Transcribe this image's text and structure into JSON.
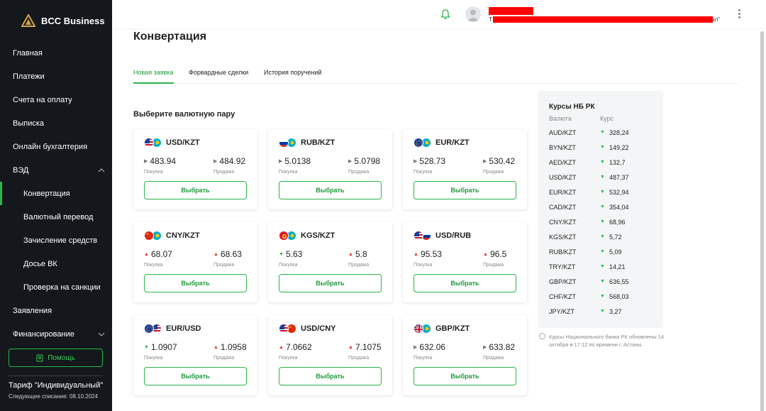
{
  "brand": {
    "name": "BCC Business"
  },
  "sidebar": {
    "items": [
      {
        "label": "Главная"
      },
      {
        "label": "Платежи"
      },
      {
        "label": "Счета на оплату"
      },
      {
        "label": "Выписка"
      },
      {
        "label": "Онлайн бухгалтерия"
      },
      {
        "label": "ВЭД"
      },
      {
        "label": "Конвертация"
      },
      {
        "label": "Валютный перевод"
      },
      {
        "label": "Зачисление средств"
      },
      {
        "label": "Досье ВК"
      },
      {
        "label": "Проверка на санкции"
      },
      {
        "label": "Заявления"
      },
      {
        "label": "Финансирование"
      }
    ],
    "help_label": "Помощь",
    "tariff_title": "Тариф \"Индивидуальный\"",
    "tariff_sub": "Следующее списание: 08.10.2024"
  },
  "header": {
    "user_line2_prefix": "Т",
    "user_line2_suffix": "ал\""
  },
  "page": {
    "title": "Конвертация",
    "tabs": [
      {
        "label": "Новая заявка"
      },
      {
        "label": "Форвардные сделки"
      },
      {
        "label": "История поручений"
      }
    ],
    "section_title": "Выберите валютную пару",
    "buy_label": "Покупка",
    "sell_label": "Продажа",
    "select_label": "Выбрать"
  },
  "pairs": [
    {
      "pair": "USD/KZT",
      "buy": "483.94",
      "sell": "484.92",
      "buy_trend": "neutral",
      "sell_trend": "neutral"
    },
    {
      "pair": "RUB/KZT",
      "buy": "5.0138",
      "sell": "5.0798",
      "buy_trend": "neutral",
      "sell_trend": "neutral"
    },
    {
      "pair": "EUR/KZT",
      "buy": "528.73",
      "sell": "530.42",
      "buy_trend": "neutral",
      "sell_trend": "neutral"
    },
    {
      "pair": "CNY/KZT",
      "buy": "68.07",
      "sell": "68.63",
      "buy_trend": "up",
      "sell_trend": "up"
    },
    {
      "pair": "KGS/KZT",
      "buy": "5.63",
      "sell": "5.8",
      "buy_trend": "down",
      "sell_trend": "up"
    },
    {
      "pair": "USD/RUB",
      "buy": "95.53",
      "sell": "96.5",
      "buy_trend": "up",
      "sell_trend": "up"
    },
    {
      "pair": "EUR/USD",
      "buy": "1.0907",
      "sell": "1.0958",
      "buy_trend": "down",
      "sell_trend": "up"
    },
    {
      "pair": "USD/CNY",
      "buy": "7.0662",
      "sell": "7.1075",
      "buy_trend": "up",
      "sell_trend": "up"
    },
    {
      "pair": "GBP/KZT",
      "buy": "632.06",
      "sell": "633.82",
      "buy_trend": "neutral",
      "sell_trend": "neutral"
    }
  ],
  "nb_rates": {
    "title": "Курсы НБ РК",
    "col_currency": "Валюта",
    "col_rate": "Курс",
    "rows": [
      {
        "cur": "AUD/KZT",
        "val": "328,24"
      },
      {
        "cur": "BYN/KZT",
        "val": "149,22"
      },
      {
        "cur": "AED/KZT",
        "val": "132,7"
      },
      {
        "cur": "USD/KZT",
        "val": "487,37"
      },
      {
        "cur": "EUR/KZT",
        "val": "532,94"
      },
      {
        "cur": "CAD/KZT",
        "val": "354,04"
      },
      {
        "cur": "CNY/KZT",
        "val": "68,96"
      },
      {
        "cur": "KGS/KZT",
        "val": "5,72"
      },
      {
        "cur": "RUB/KZT",
        "val": "5,09"
      },
      {
        "cur": "TRY/KZT",
        "val": "14,21"
      },
      {
        "cur": "GBP/KZT",
        "val": "636,55"
      },
      {
        "cur": "CHF/KZT",
        "val": "568,03"
      },
      {
        "cur": "JPY/KZT",
        "val": "3,27"
      }
    ],
    "note": "Курсы Национального банка РК обновлены 14 октября в 17:12 по времени г. Астаны"
  },
  "colors": {
    "accent": "#2bb44a",
    "sidebar_bg": "#14181c",
    "up": "#e03030",
    "down": "#2bb44a"
  }
}
